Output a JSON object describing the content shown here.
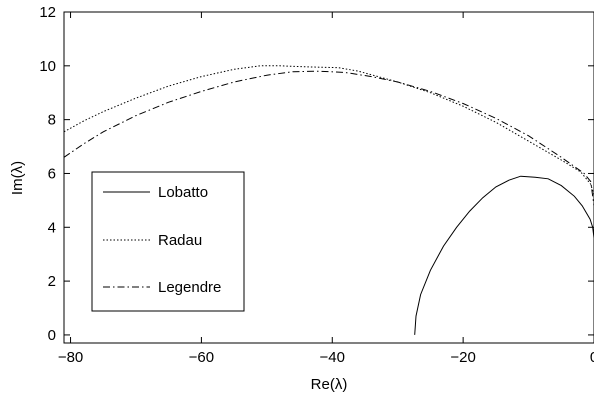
{
  "chart_data": {
    "type": "line",
    "xlabel": "Re(λ)",
    "ylabel": "Im(λ)",
    "xlim": [
      -81,
      0
    ],
    "ylim": [
      -0.3,
      12
    ],
    "xticks": [
      -80,
      -60,
      -40,
      -20,
      0
    ],
    "yticks": [
      0,
      2,
      4,
      6,
      8,
      10,
      12
    ],
    "xtick_labels": [
      "−80",
      "−60",
      "−40",
      "−20",
      "0"
    ],
    "ytick_labels": [
      "0",
      "2",
      "4",
      "6",
      "8",
      "10",
      "12"
    ],
    "grid": false,
    "legend_position": "left",
    "series": [
      {
        "name": "Lobatto",
        "dash": "solid",
        "x": [
          -27.4,
          -27.2,
          -26.5,
          -25.0,
          -23.0,
          -21.0,
          -19.0,
          -17.0,
          -15.0,
          -13.0,
          -11.2,
          -9.0,
          -7.0,
          -5.0,
          -3.0,
          -1.8,
          -0.6,
          -0.2,
          0
        ],
        "y": [
          0.0,
          0.7,
          1.5,
          2.4,
          3.3,
          4.0,
          4.6,
          5.1,
          5.5,
          5.75,
          5.9,
          5.86,
          5.8,
          5.55,
          5.15,
          4.8,
          4.3,
          4.0,
          3.6
        ]
      },
      {
        "name": "Radau",
        "dash": "dotted",
        "x": [
          -81,
          -78,
          -75,
          -70,
          -65,
          -60,
          -55,
          -51,
          -48,
          -45,
          -42,
          -39,
          -36,
          -33,
          -30,
          -25,
          -20,
          -15,
          -10,
          -5,
          -2,
          -0.5,
          0
        ],
        "y": [
          7.55,
          7.95,
          8.3,
          8.8,
          9.25,
          9.6,
          9.87,
          10.0,
          10.0,
          9.97,
          9.95,
          9.93,
          9.8,
          9.6,
          9.4,
          9.0,
          8.5,
          7.9,
          7.2,
          6.5,
          6.05,
          5.6,
          5.2
        ]
      },
      {
        "name": "Legendre",
        "dash": "dashdot",
        "x": [
          -81,
          -78,
          -75,
          -70,
          -65,
          -60,
          -55,
          -50,
          -46,
          -42,
          -38,
          -34,
          -30,
          -25,
          -20,
          -15,
          -10,
          -5,
          -1.5,
          -0.5,
          0
        ],
        "y": [
          6.6,
          7.1,
          7.55,
          8.15,
          8.65,
          9.05,
          9.4,
          9.65,
          9.78,
          9.8,
          9.75,
          9.6,
          9.4,
          9.05,
          8.6,
          8.05,
          7.4,
          6.6,
          6.0,
          5.7,
          4.8
        ]
      }
    ]
  }
}
